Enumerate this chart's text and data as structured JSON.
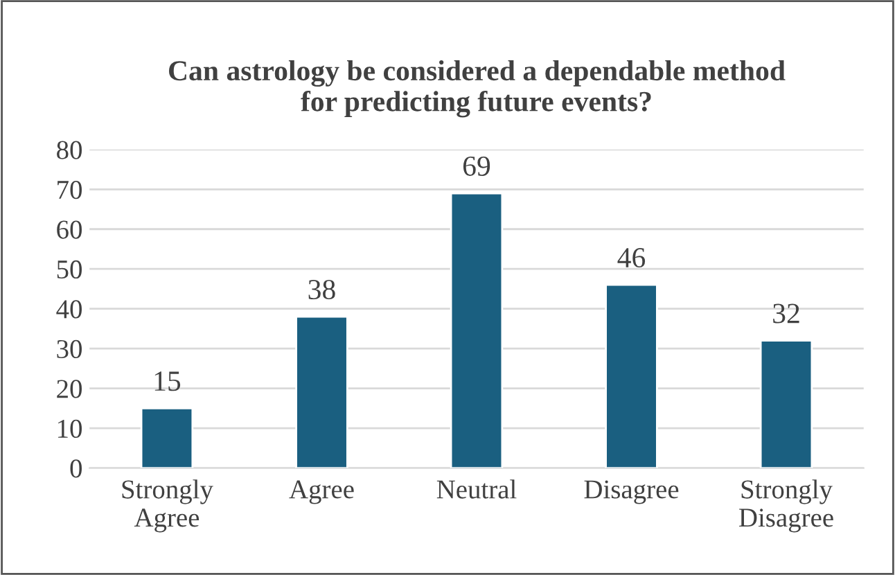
{
  "chart_data": {
    "type": "bar",
    "title": "Can astrology be considered a dependable method\nfor predicting future events?",
    "categories": [
      "Strongly\nAgree",
      "Agree",
      "Neutral",
      "Disagree",
      "Strongly\nDisagree"
    ],
    "values": [
      15,
      38,
      69,
      46,
      32
    ],
    "color": "#1a5f80",
    "ylim": [
      0,
      80
    ],
    "yticks": [
      0,
      10,
      20,
      30,
      40,
      50,
      60,
      70,
      80
    ],
    "grid": "y",
    "data_labels": true
  }
}
